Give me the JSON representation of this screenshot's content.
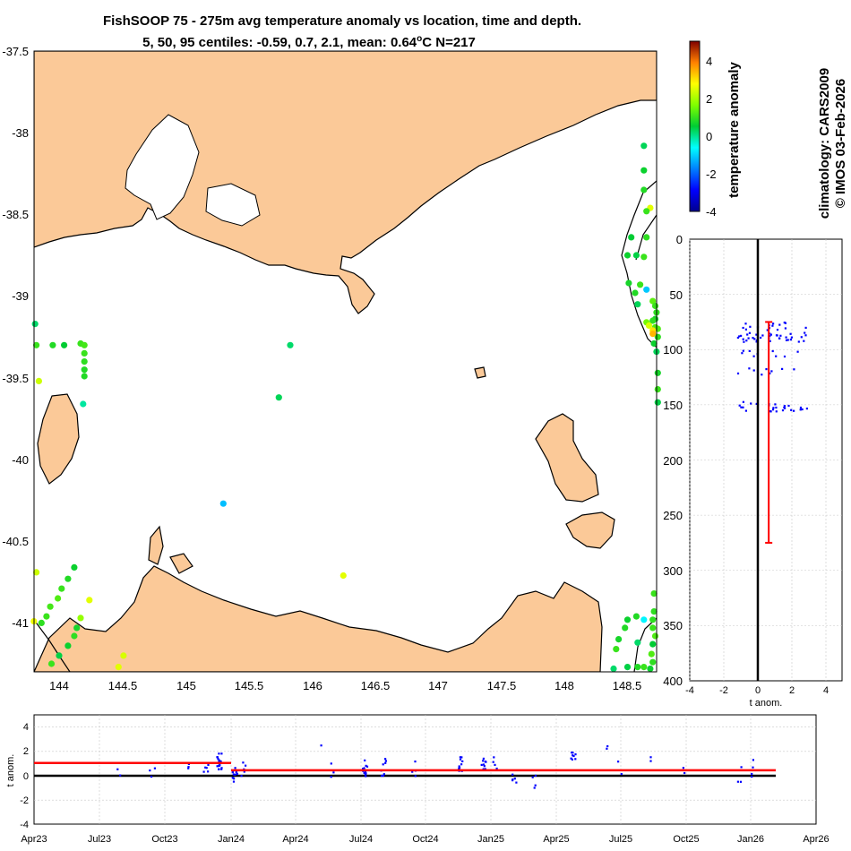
{
  "title_line1": "FishSOOP 75 - 275m avg temperature anomaly vs location, time and depth.",
  "title_line2_prefix": "5, 50, 95 centiles: -0.59, 0.7, 2.1, mean: 0.64",
  "title_line2_sup": "o",
  "title_line2_suffix": "C N=217",
  "side_line1": "climatology: CARS2009",
  "side_line2": "© IMOS 03-Feb-2026",
  "colors": {
    "land": "#fbc998",
    "sea": "#ffffff",
    "red": "#ff0000",
    "blue": "#0000ff",
    "black": "#000000",
    "grid": "#c8c8c8"
  },
  "chart_data": [
    {
      "name": "map",
      "type": "scatter",
      "title": "FishSOOP 75 - 275m avg temperature anomaly vs location, time and depth.",
      "xlim": [
        143.8,
        148.75
      ],
      "ylim": [
        -41.3,
        -37.5
      ],
      "xticks": [
        "144",
        "144.5",
        "145",
        "145.5",
        "146",
        "146.5",
        "147",
        "147.5",
        "148",
        "148.5"
      ],
      "xtick_values": [
        144,
        144.5,
        145,
        145.5,
        146,
        146.5,
        147,
        147.5,
        148,
        148.5
      ],
      "yticks": [
        "-37.5",
        "-38",
        "-38.5",
        "-39",
        "-39.5",
        "-40",
        "-40.5",
        "-41"
      ],
      "ytick_values": [
        -37.5,
        -38,
        -38.5,
        -39,
        -39.5,
        -40,
        -40.5,
        -41
      ],
      "points": [
        [
          143.81,
          -39.17,
          0.2
        ],
        [
          143.82,
          -39.3,
          1.0
        ],
        [
          143.84,
          -39.52,
          2.3
        ],
        [
          143.95,
          -39.3,
          0.8
        ],
        [
          144.04,
          -39.3,
          0.5
        ],
        [
          144.17,
          -39.29,
          1.0
        ],
        [
          144.2,
          -39.3,
          1.1
        ],
        [
          144.2,
          -39.35,
          1.0
        ],
        [
          144.2,
          -39.4,
          0.9
        ],
        [
          144.2,
          -39.45,
          0.8
        ],
        [
          144.2,
          -39.49,
          0.8
        ],
        [
          144.19,
          -39.66,
          -0.1
        ],
        [
          145.83,
          -39.3,
          0.2
        ],
        [
          145.74,
          -39.62,
          0.3
        ],
        [
          145.3,
          -40.27,
          -1.2
        ],
        [
          146.25,
          -40.71,
          2.5
        ],
        [
          148.63,
          -38.08,
          0.3
        ],
        [
          148.63,
          -38.23,
          0.6
        ],
        [
          148.63,
          -38.35,
          0.8
        ],
        [
          148.68,
          -38.46,
          2.5
        ],
        [
          148.65,
          -38.48,
          1.0
        ],
        [
          148.53,
          -38.64,
          0.5
        ],
        [
          148.65,
          -38.64,
          0.9
        ],
        [
          148.5,
          -38.75,
          0.6
        ],
        [
          148.57,
          -38.75,
          0.4
        ],
        [
          148.63,
          -38.76,
          1.0
        ],
        [
          148.6,
          -38.93,
          1.0
        ],
        [
          148.65,
          -38.96,
          -1.1
        ],
        [
          148.51,
          -38.92,
          0.7
        ],
        [
          148.56,
          -38.98,
          0.8
        ],
        [
          148.58,
          -39.05,
          0.3
        ],
        [
          148.7,
          -39.03,
          1.3
        ],
        [
          148.72,
          -39.06,
          1.0
        ],
        [
          148.73,
          -39.1,
          0.9
        ],
        [
          148.72,
          -39.14,
          0.7
        ],
        [
          148.72,
          -39.19,
          1.2
        ],
        [
          148.7,
          -39.15,
          0.9
        ],
        [
          148.74,
          -39.2,
          1.2
        ],
        [
          148.74,
          -39.25,
          0.9
        ],
        [
          148.71,
          -39.29,
          0.6
        ],
        [
          148.73,
          -39.34,
          0.3
        ],
        [
          148.65,
          -39.16,
          1.5
        ],
        [
          148.67,
          -39.18,
          2.4
        ],
        [
          148.7,
          -39.21,
          3.0
        ],
        [
          148.7,
          -39.23,
          3.4
        ],
        [
          148.74,
          -39.47,
          0.7
        ],
        [
          148.74,
          -39.57,
          1.0
        ],
        [
          148.74,
          -39.65,
          0.4
        ],
        [
          143.82,
          -40.69,
          2.3
        ],
        [
          144.12,
          -40.66,
          0.6
        ],
        [
          144.07,
          -40.73,
          0.8
        ],
        [
          144.02,
          -40.79,
          1.0
        ],
        [
          143.99,
          -40.85,
          1.2
        ],
        [
          143.93,
          -40.9,
          1.1
        ],
        [
          143.9,
          -40.96,
          1.0
        ],
        [
          143.86,
          -41.0,
          0.9
        ],
        [
          143.8,
          -40.99,
          2.6
        ],
        [
          144.24,
          -40.86,
          2.5
        ],
        [
          144.17,
          -40.97,
          1.8
        ],
        [
          144.14,
          -41.03,
          0.7
        ],
        [
          144.12,
          -41.08,
          0.9
        ],
        [
          144.07,
          -41.14,
          0.6
        ],
        [
          144.0,
          -41.2,
          0.4
        ],
        [
          143.94,
          -41.25,
          1.0
        ],
        [
          144.51,
          -41.2,
          2.4
        ],
        [
          144.47,
          -41.27,
          2.5
        ],
        [
          148.71,
          -40.82,
          1.0
        ],
        [
          148.71,
          -40.93,
          0.9
        ],
        [
          148.63,
          -40.98,
          -0.7
        ],
        [
          148.57,
          -40.96,
          0.8
        ],
        [
          148.5,
          -40.98,
          0.6
        ],
        [
          148.48,
          -41.03,
          0.8
        ],
        [
          148.43,
          -41.1,
          0.7
        ],
        [
          148.41,
          -41.16,
          1.0
        ],
        [
          148.58,
          -41.12,
          0.2
        ],
        [
          148.7,
          -40.98,
          0.9
        ],
        [
          148.7,
          -41.03,
          1.0
        ],
        [
          148.72,
          -41.08,
          1.2
        ],
        [
          148.7,
          -41.13,
          0.5
        ],
        [
          148.69,
          -41.19,
          1.2
        ],
        [
          148.7,
          -41.24,
          0.9
        ],
        [
          148.68,
          -41.28,
          0.6
        ],
        [
          148.39,
          -41.28,
          0.2
        ],
        [
          148.5,
          -41.27,
          0.4
        ],
        [
          148.58,
          -41.27,
          0.8
        ],
        [
          148.63,
          -41.27,
          1.0
        ]
      ],
      "point_note": "each point is [longitude, latitude, temperature anomaly]"
    },
    {
      "name": "colorbar",
      "type": "heatmap",
      "label": "temperature anomaly",
      "range": [
        -4,
        5
      ],
      "ticks": [
        "4",
        "2",
        "0",
        "-2",
        "-4"
      ],
      "tick_values": [
        4,
        2,
        0,
        -2,
        -4
      ]
    },
    {
      "name": "depth_profile",
      "type": "scatter",
      "xlabel": "t anom.",
      "xlim": [
        -4,
        5
      ],
      "ylim": [
        400,
        0
      ],
      "xticks": [
        "-4",
        "-2",
        "0",
        "2",
        "4"
      ],
      "xtick_values": [
        -4,
        -2,
        0,
        2,
        4
      ],
      "yticks": [
        "0",
        "50",
        "100",
        "150",
        "200",
        "250",
        "300",
        "350",
        "400"
      ],
      "ytick_values": [
        0,
        50,
        100,
        150,
        200,
        250,
        300,
        350,
        400
      ],
      "mean": 0.64,
      "range_bar": {
        "x": 0.64,
        "depth_top": 75,
        "depth_bottom": 275
      },
      "cluster_depths": [
        78,
        82,
        88,
        90,
        104,
        120,
        150,
        153
      ]
    },
    {
      "name": "time_series",
      "type": "scatter",
      "ylabel": "t anom.",
      "ylim": [
        -4,
        4
      ],
      "yticks": [
        "4",
        "2",
        "0",
        "-2",
        "-4"
      ],
      "ytick_values": [
        4,
        2,
        0,
        -2,
        -4
      ],
      "xticks": [
        "Apr23",
        "Jul23",
        "Oct23",
        "Jan24",
        "Apr24",
        "Jul24",
        "Oct24",
        "Jan25",
        "Apr25",
        "Jul25",
        "Oct25",
        "Jan26",
        "Apr26"
      ],
      "segments": [
        {
          "from": "Apr23",
          "to": "Jan24",
          "value": 1.05
        },
        {
          "from": "Jan24",
          "to": "Mar26",
          "value": 0.45
        }
      ]
    }
  ]
}
